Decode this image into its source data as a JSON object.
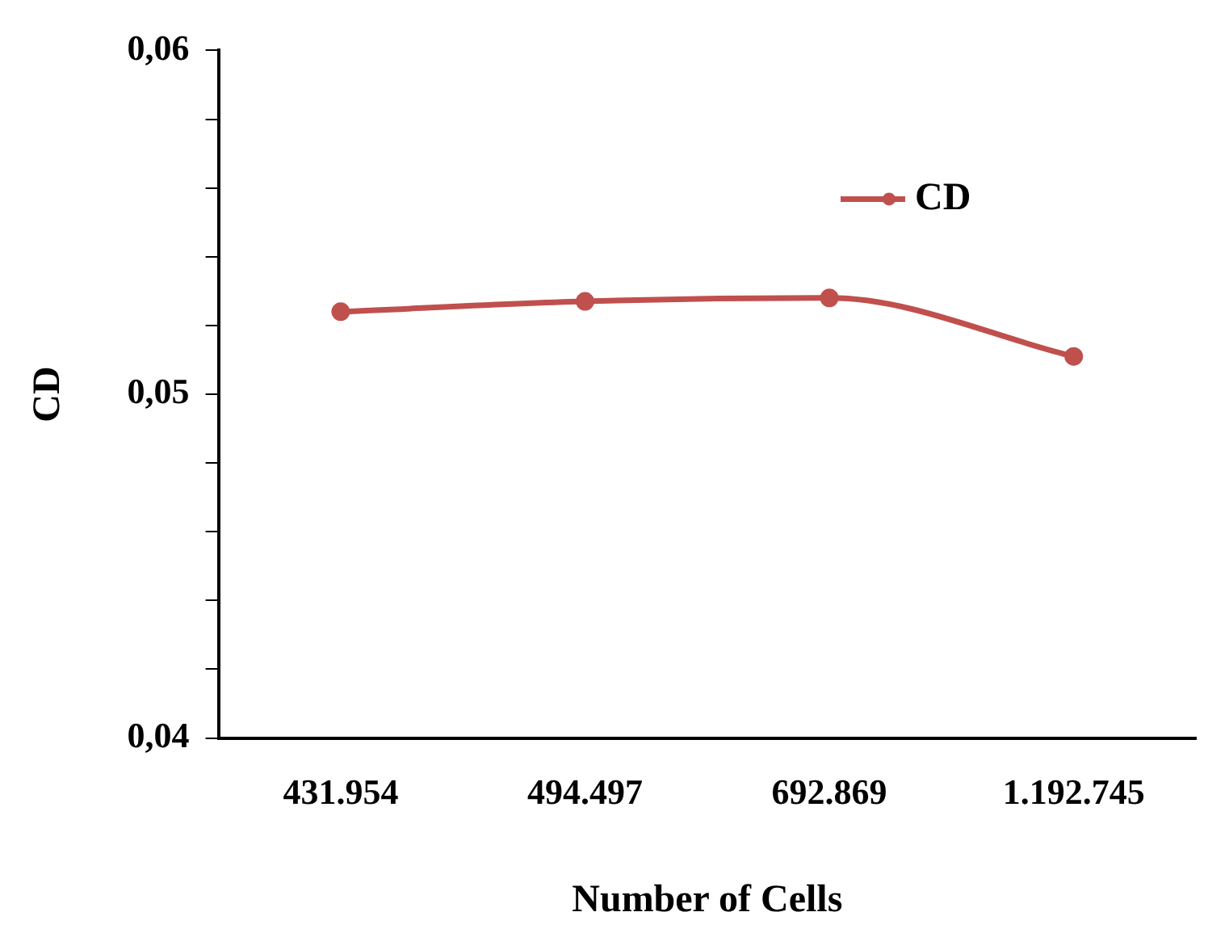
{
  "chart_data": {
    "type": "line",
    "xlabel": "Number of Cells",
    "ylabel": "CD",
    "categories": [
      "431.954",
      "494.497",
      "692.869",
      "1.192.745"
    ],
    "series": [
      {
        "name": "CD",
        "color": "#c0504d",
        "values": [
          0.0524,
          0.0527,
          0.0528,
          0.0511
        ]
      }
    ],
    "ylim": [
      0.04,
      0.06
    ],
    "yticks": [
      {
        "value": 0.04,
        "label": "0,04"
      },
      {
        "value": 0.042,
        "label": null
      },
      {
        "value": 0.044,
        "label": null
      },
      {
        "value": 0.046,
        "label": null
      },
      {
        "value": 0.048,
        "label": null
      },
      {
        "value": 0.05,
        "label": "0,05"
      },
      {
        "value": 0.052,
        "label": null
      },
      {
        "value": 0.054,
        "label": null
      },
      {
        "value": 0.056,
        "label": null
      },
      {
        "value": 0.058,
        "label": null
      },
      {
        "value": 0.06,
        "label": "0,06"
      }
    ],
    "grid": false,
    "legend": "top right",
    "marker": "circle",
    "line_style": "solid"
  }
}
